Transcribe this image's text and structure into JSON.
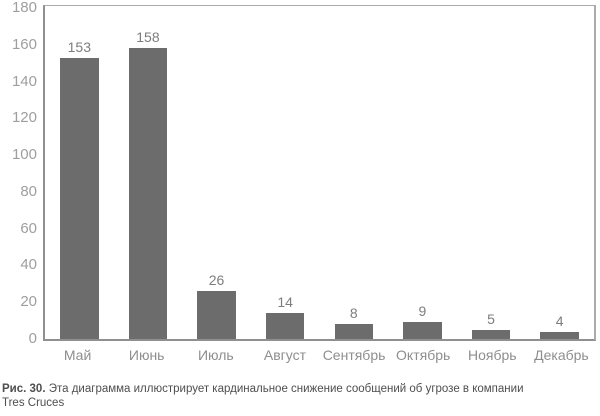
{
  "figure": {
    "caption": {
      "label": "Рис. 30.",
      "text": "Эта диаграмма иллюстрирует кардинальное снижение сообщений об угрозе в компании",
      "line2": "Tres Cruces"
    }
  },
  "chart_data": {
    "type": "bar",
    "categories": [
      "Май",
      "Июнь",
      "Июль",
      "Август",
      "Сентябрь",
      "Октябрь",
      "Ноябрь",
      "Декабрь"
    ],
    "values": [
      153,
      158,
      26,
      14,
      8,
      9,
      5,
      4
    ],
    "title": "",
    "xlabel": "",
    "ylabel": "",
    "ylim": [
      0,
      180
    ],
    "ytick_step": 20,
    "yticks": [
      0,
      20,
      40,
      60,
      80,
      100,
      120,
      140,
      160,
      180
    ],
    "grid": false,
    "legend": "none",
    "value_labels_shown": true
  },
  "colors": {
    "bar": "#6c6c6c",
    "value_label": "#7d7d7d",
    "x_tick_label": "#8e8e8e",
    "y_tick_label": "#9e9e9e",
    "axis_line": "#909090",
    "plot_border": "#ababab",
    "caption_text": "#4e4e4e",
    "background": "#ffffff"
  }
}
